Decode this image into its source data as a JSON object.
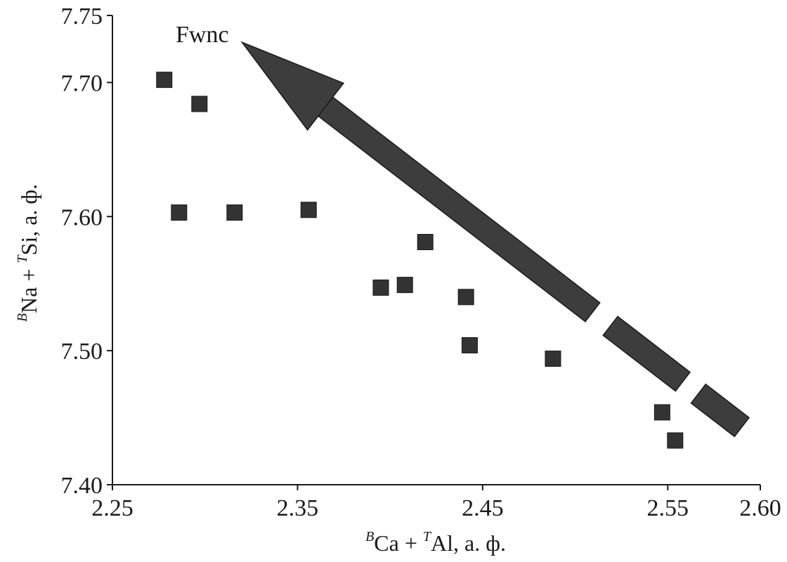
{
  "chart_data": {
    "type": "scatter",
    "title": "",
    "x_axis": {
      "label_prefix_sup": "B",
      "label_part1": "Ca + ",
      "label_sup2": "T",
      "label_part2": "Al, а. ф.",
      "range": [
        2.25,
        2.6
      ],
      "ticks": [
        "2.25",
        "2.35",
        "2.45",
        "2.55",
        "2.60"
      ],
      "tick_values": [
        2.25,
        2.35,
        2.45,
        2.55,
        2.6
      ]
    },
    "y_axis": {
      "label_prefix_sup": "B",
      "label_part1": "Na + ",
      "label_sup2": "T",
      "label_part2": "Si, а. ф.",
      "range": [
        7.4,
        7.75
      ],
      "ticks": [
        "7.40",
        "7.50",
        "7.60",
        "7.70",
        "7.75"
      ],
      "tick_values": [
        7.4,
        7.5,
        7.6,
        7.7,
        7.75
      ]
    },
    "grid": false,
    "legend": "none",
    "marker_color": "#333333",
    "points": [
      {
        "x": 2.278,
        "y": 7.702
      },
      {
        "x": 2.297,
        "y": 7.684
      },
      {
        "x": 2.286,
        "y": 7.603
      },
      {
        "x": 2.316,
        "y": 7.603
      },
      {
        "x": 2.356,
        "y": 7.605
      },
      {
        "x": 2.419,
        "y": 7.581
      },
      {
        "x": 2.395,
        "y": 7.547
      },
      {
        "x": 2.408,
        "y": 7.549
      },
      {
        "x": 2.441,
        "y": 7.54
      },
      {
        "x": 2.443,
        "y": 7.504
      },
      {
        "x": 2.488,
        "y": 7.494
      },
      {
        "x": 2.547,
        "y": 7.454
      },
      {
        "x": 2.554,
        "y": 7.433
      }
    ],
    "annotations": [
      {
        "text": "Fwnc",
        "kind": "trend-arrow",
        "from": [
          2.59,
          7.443
        ],
        "to": [
          2.32,
          7.73
        ]
      }
    ]
  }
}
